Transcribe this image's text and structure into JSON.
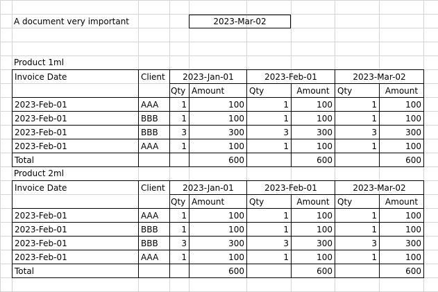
{
  "header": {
    "title": "A document very important",
    "date": "2023-Mar-02"
  },
  "sections": [
    {
      "name": "Product 1ml",
      "col_invoice": "Invoice Date",
      "col_client": "Client",
      "periods": [
        "2023-Jan-01",
        "2023-Feb-01",
        "2023-Mar-02"
      ],
      "sub_qty": "Qty",
      "sub_amount": "Amount",
      "rows": [
        {
          "date": "2023-Feb-01",
          "client": "AAA",
          "q1": "1",
          "a1": "100",
          "q2": "1",
          "a2": "100",
          "q3": "1",
          "a3": "100"
        },
        {
          "date": "2023-Feb-01",
          "client": "BBB",
          "q1": "1",
          "a1": "100",
          "q2": "1",
          "a2": "100",
          "q3": "1",
          "a3": "100"
        },
        {
          "date": "2023-Feb-01",
          "client": "BBB",
          "q1": "3",
          "a1": "300",
          "q2": "3",
          "a2": "300",
          "q3": "3",
          "a3": "300"
        },
        {
          "date": "2023-Feb-01",
          "client": "AAA",
          "q1": "1",
          "a1": "100",
          "q2": "1",
          "a2": "100",
          "q3": "1",
          "a3": "100"
        }
      ],
      "total_label": "Total",
      "totals": [
        "600",
        "600",
        "600"
      ]
    },
    {
      "name": "Product 2ml",
      "col_invoice": "Invoice Date",
      "col_client": "Client",
      "periods": [
        "2023-Jan-01",
        "2023-Feb-01",
        "2023-Mar-02"
      ],
      "sub_qty": "Qty",
      "sub_amount": "Amount",
      "rows": [
        {
          "date": "2023-Feb-01",
          "client": "AAA",
          "q1": "1",
          "a1": "100",
          "q2": "1",
          "a2": "100",
          "q3": "1",
          "a3": "100"
        },
        {
          "date": "2023-Feb-01",
          "client": "BBB",
          "q1": "1",
          "a1": "100",
          "q2": "1",
          "a2": "100",
          "q3": "1",
          "a3": "100"
        },
        {
          "date": "2023-Feb-01",
          "client": "BBB",
          "q1": "3",
          "a1": "300",
          "q2": "3",
          "a2": "300",
          "q3": "3",
          "a3": "300"
        },
        {
          "date": "2023-Feb-01",
          "client": "AAA",
          "q1": "1",
          "a1": "100",
          "q2": "1",
          "a2": "100",
          "q3": "1",
          "a3": "100"
        }
      ],
      "total_label": "Total",
      "totals": [
        "600",
        "600",
        "600"
      ]
    }
  ]
}
